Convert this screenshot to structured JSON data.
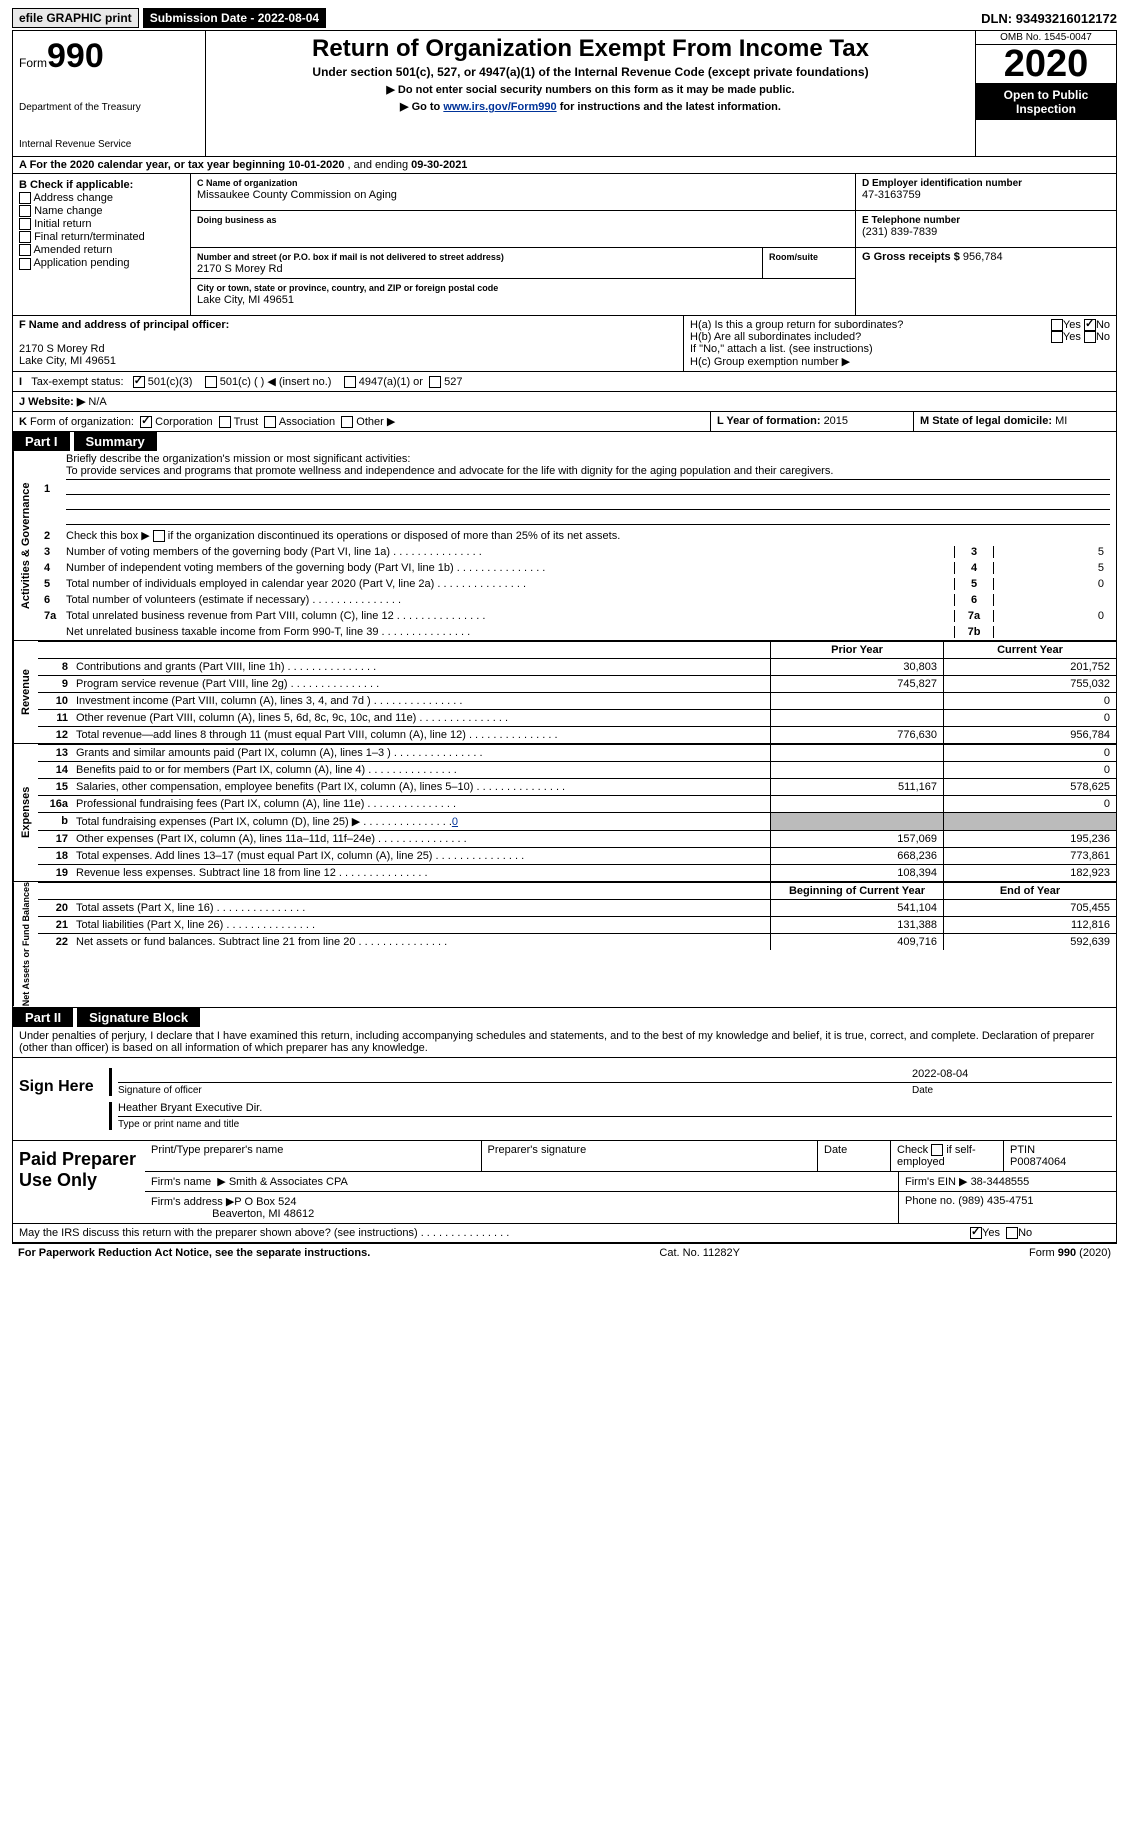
{
  "topbar": {
    "efile": "efile GRAPHIC print",
    "sub_lbl": "Submission Date - ",
    "sub_date": "2022-08-04",
    "dln_lbl": "DLN: ",
    "dln": "93493216012172"
  },
  "hdr": {
    "form": "Form",
    "num": "990",
    "title": "Return of Organization Exempt From Income Tax",
    "sub": "Under section 501(c), 527, or 4947(a)(1) of the Internal Revenue Code (except private foundations)",
    "l1": "▶ Do not enter social security numbers on this form as it may be made public.",
    "l2_pre": "▶ Go to ",
    "l2_link": "www.irs.gov/Form990",
    "l2_post": " for instructions and the latest information.",
    "dept": "Department of the Treasury",
    "irs": "Internal Revenue Service",
    "omb": "OMB No. 1545-0047",
    "year": "2020",
    "inspect": "Open to Public Inspection"
  },
  "a": {
    "text": "A For the 2020 calendar year, or tax year beginning ",
    "begin": "10-01-2020",
    "mid": " , and ending ",
    "end": "09-30-2021"
  },
  "b": {
    "hdr": "B Check if applicable:",
    "items": [
      "Address change",
      "Name change",
      "Initial return",
      "Final return/terminated",
      "Amended return",
      "Application pending"
    ]
  },
  "c": {
    "lbl": "C Name of organization",
    "name": "Missaukee County Commission on Aging",
    "dba_lbl": "Doing business as",
    "addr_lbl": "Number and street (or P.O. box if mail is not delivered to street address)",
    "room_lbl": "Room/suite",
    "addr": "2170 S Morey Rd",
    "city_lbl": "City or town, state or province, country, and ZIP or foreign postal code",
    "city": "Lake City, MI  49651"
  },
  "d": {
    "lbl": "D Employer identification number",
    "val": "47-3163759"
  },
  "e": {
    "lbl": "E Telephone number",
    "val": "(231) 839-7839"
  },
  "g": {
    "lbl": "G Gross receipts $ ",
    "val": "956,784"
  },
  "f": {
    "lbl": "F  Name and address of principal officer:",
    "addr1": "2170 S Morey Rd",
    "addr2": "Lake City, MI  49651"
  },
  "h": {
    "a": "H(a)  Is this a group return for subordinates?",
    "b": "H(b)  Are all subordinates included?",
    "note": "If \"No,\" attach a list. (see instructions)",
    "c": "H(c)  Group exemption number ▶",
    "yes": "Yes",
    "no": "No"
  },
  "i": {
    "lbl": "I    Tax-exempt status:",
    "o1": "501(c)(3)",
    "o2": "501(c) ( )  ◀ (insert no.)",
    "o3": "4947(a)(1) or",
    "o4": "527"
  },
  "j": {
    "lbl": "J   Website: ▶  ",
    "val": "N/A"
  },
  "k": {
    "lbl": "K Form of organization:",
    "o1": "Corporation",
    "o2": "Trust",
    "o3": "Association",
    "o4": "Other ▶"
  },
  "l": {
    "lbl": "L Year of formation: ",
    "val": "2015"
  },
  "m": {
    "lbl": "M State of legal domicile: ",
    "val": "MI"
  },
  "part1": {
    "lbl": "Part I",
    "title": "Summary"
  },
  "p1": {
    "num": "1",
    "txt": "Briefly describe the organization's mission or most significant activities:",
    "mission": "To provide services and programs that promote wellness and independence and advocate for the life with dignity for the aging population and their caregivers."
  },
  "p2": {
    "num": "2",
    "txt": "Check this box ▶ ",
    "txt2": " if the organization discontinued its operations or disposed of more than 25% of its net assets."
  },
  "gov": {
    "side": "Activities & Governance",
    "lines": [
      {
        "n": "3",
        "t": "Number of voting members of the governing body (Part VI, line 1a)",
        "k": "3",
        "v": "5"
      },
      {
        "n": "4",
        "t": "Number of independent voting members of the governing body (Part VI, line 1b)",
        "k": "4",
        "v": "5"
      },
      {
        "n": "5",
        "t": "Total number of individuals employed in calendar year 2020 (Part V, line 2a)",
        "k": "5",
        "v": "0"
      },
      {
        "n": "6",
        "t": "Total number of volunteers (estimate if necessary)",
        "k": "6",
        "v": ""
      },
      {
        "n": "7a",
        "t": "Total unrelated business revenue from Part VIII, column (C), line 12",
        "k": "7a",
        "v": "0"
      },
      {
        "n": "",
        "t": "Net unrelated business taxable income from Form 990-T, line 39",
        "k": "7b",
        "v": ""
      }
    ]
  },
  "cols": {
    "py": "Prior Year",
    "cy": "Current Year",
    "boy": "Beginning of Current Year",
    "eoy": "End of Year"
  },
  "rev": {
    "side": "Revenue",
    "lines": [
      {
        "n": "8",
        "t": "Contributions and grants (Part VIII, line 1h)",
        "py": "30,803",
        "cy": "201,752"
      },
      {
        "n": "9",
        "t": "Program service revenue (Part VIII, line 2g)",
        "py": "745,827",
        "cy": "755,032"
      },
      {
        "n": "10",
        "t": "Investment income (Part VIII, column (A), lines 3, 4, and 7d )",
        "py": "",
        "cy": "0"
      },
      {
        "n": "11",
        "t": "Other revenue (Part VIII, column (A), lines 5, 6d, 8c, 9c, 10c, and 11e)",
        "py": "",
        "cy": "0"
      },
      {
        "n": "12",
        "t": "Total revenue—add lines 8 through 11 (must equal Part VIII, column (A), line 12)",
        "py": "776,630",
        "cy": "956,784"
      }
    ]
  },
  "exp": {
    "side": "Expenses",
    "lines": [
      {
        "n": "13",
        "t": "Grants and similar amounts paid (Part IX, column (A), lines 1–3 )",
        "py": "",
        "cy": "0"
      },
      {
        "n": "14",
        "t": "Benefits paid to or for members (Part IX, column (A), line 4)",
        "py": "",
        "cy": "0"
      },
      {
        "n": "15",
        "t": "Salaries, other compensation, employee benefits (Part IX, column (A), lines 5–10)",
        "py": "511,167",
        "cy": "578,625"
      },
      {
        "n": "16a",
        "t": "Professional fundraising fees (Part IX, column (A), line 11e)",
        "py": "",
        "cy": "0"
      },
      {
        "n": "b",
        "t": "Total fundraising expenses (Part IX, column (D), line 25) ▶",
        "link": "0",
        "py": "shaded",
        "cy": "shaded"
      },
      {
        "n": "17",
        "t": "Other expenses (Part IX, column (A), lines 11a–11d, 11f–24e)",
        "py": "157,069",
        "cy": "195,236"
      },
      {
        "n": "18",
        "t": "Total expenses. Add lines 13–17 (must equal Part IX, column (A), line 25)",
        "py": "668,236",
        "cy": "773,861"
      },
      {
        "n": "19",
        "t": "Revenue less expenses. Subtract line 18 from line 12",
        "py": "108,394",
        "cy": "182,923"
      }
    ]
  },
  "net": {
    "side": "Net Assets or Fund Balances",
    "lines": [
      {
        "n": "20",
        "t": "Total assets (Part X, line 16)",
        "py": "541,104",
        "cy": "705,455"
      },
      {
        "n": "21",
        "t": "Total liabilities (Part X, line 26)",
        "py": "131,388",
        "cy": "112,816"
      },
      {
        "n": "22",
        "t": "Net assets or fund balances. Subtract line 21 from line 20",
        "py": "409,716",
        "cy": "592,639"
      }
    ]
  },
  "part2": {
    "lbl": "Part II",
    "title": "Signature Block"
  },
  "sig": {
    "decl": "Under penalties of perjury, I declare that I have examined this return, including accompanying schedules and statements, and to the best of my knowledge and belief, it is true, correct, and complete. Declaration of preparer (other than officer) is based on all information of which preparer has any knowledge.",
    "here": "Sign Here",
    "sig_lbl": "Signature of officer",
    "date_lbl": "Date",
    "date": "2022-08-04",
    "name": "Heather Bryant  Executive Dir.",
    "name_lbl": "Type or print name and title"
  },
  "prep": {
    "lbl": "Paid Preparer Use Only",
    "h1": "Print/Type preparer's name",
    "h2": "Preparer's signature",
    "h3": "Date",
    "h4": "Check",
    "h4b": "if self-employed",
    "h5": "PTIN",
    "ptin": "P00874064",
    "firm_lbl": "Firm's name",
    "firm": "▶  Smith & Associates CPA",
    "ein_lbl": "Firm's EIN ▶",
    "ein": "38-3448555",
    "addr_lbl": "Firm's address ▶",
    "addr": "P O Box 524",
    "city": "Beaverton, MI  48612",
    "phone_lbl": "Phone no.",
    "phone": "(989) 435-4751"
  },
  "discuss": {
    "txt": "May the IRS discuss this return with the preparer shown above? (see instructions)",
    "yes": "Yes",
    "no": "No"
  },
  "footer": {
    "l": "For Paperwork Reduction Act Notice, see the separate instructions.",
    "c": "Cat. No. 11282Y",
    "r": "Form 990 (2020)"
  }
}
